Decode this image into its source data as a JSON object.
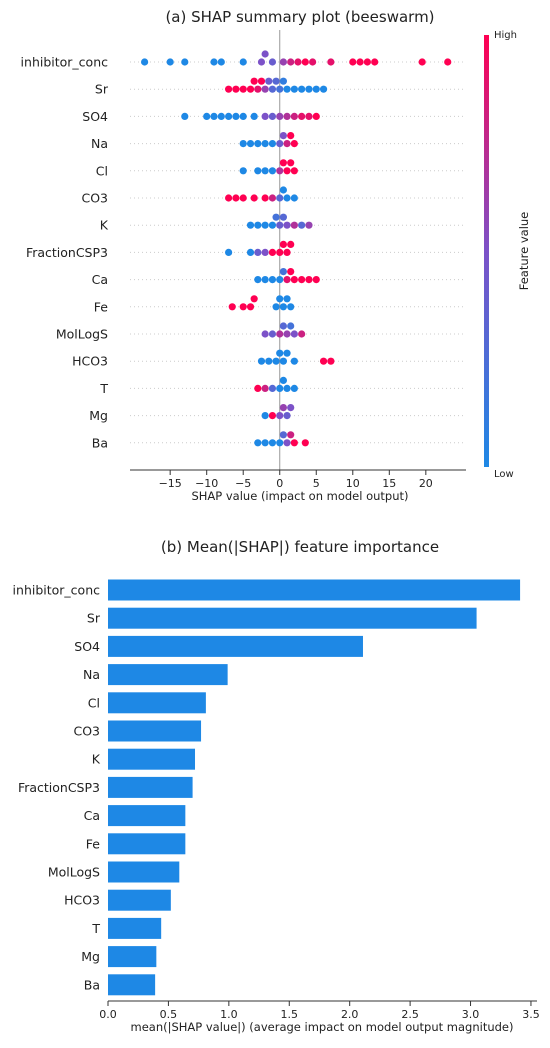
{
  "chart_data": [
    {
      "type": "scatter",
      "title": "(a) SHAP summary plot (beeswarm)",
      "xlabel": "SHAP value (impact on model output)",
      "xticks": [
        -15,
        -10,
        -5,
        0,
        5,
        10,
        15,
        20
      ],
      "xlim": [
        -20.5,
        25.5
      ],
      "features": [
        "inhibitor_conc",
        "Sr",
        "SO4",
        "Na",
        "Cl",
        "CO3",
        "K",
        "FractionCSP3",
        "Ca",
        "Fe",
        "MolLogS",
        "HCO3",
        "T",
        "Mg",
        "Ba"
      ],
      "colorbar": {
        "label": "Feature value",
        "high": "High",
        "low": "Low",
        "low_color": "#1e88e5",
        "high_color": "#ff0052"
      },
      "points": [
        {
          "feature": "inhibitor_conc",
          "values": [
            -18.5,
            -15,
            -13,
            -9,
            -8,
            -5,
            -2.5,
            -2,
            -1,
            0.5,
            1.5,
            2.5,
            3.5,
            4.5,
            7,
            10,
            11,
            12,
            13,
            19.5,
            23
          ],
          "colors": [
            0,
            0,
            0,
            0,
            0,
            0,
            0.5,
            0.5,
            0.4,
            0.6,
            0.8,
            0.9,
            1,
            0.9,
            0.9,
            1,
            1,
            1,
            1,
            1,
            1
          ]
        },
        {
          "feature": "Sr",
          "values": [
            -7,
            -6,
            -5,
            -4,
            -3.5,
            -3,
            -2.5,
            -2,
            -1.5,
            -1,
            -0.5,
            0,
            0.5,
            1,
            2,
            3,
            4,
            5,
            6
          ],
          "colors": [
            1,
            1,
            1,
            1,
            1,
            0.9,
            1,
            0.6,
            0.4,
            0.3,
            0.3,
            0.2,
            0.1,
            0,
            0,
            0,
            0,
            0,
            0
          ]
        },
        {
          "feature": "SO4",
          "values": [
            -13,
            -10,
            -9,
            -8,
            -7,
            -6,
            -5,
            -3.5,
            -2,
            -1,
            0,
            1,
            2,
            3,
            4,
            5
          ],
          "colors": [
            0,
            0,
            0,
            0,
            0,
            0,
            0,
            0,
            0.5,
            0.4,
            0.6,
            0.7,
            0.8,
            0.9,
            0.9,
            1
          ]
        },
        {
          "feature": "Na",
          "values": [
            -5,
            -4,
            -3,
            -2,
            -1,
            0,
            0.5,
            1,
            1.5,
            2
          ],
          "colors": [
            0,
            0,
            0,
            0,
            0,
            0.4,
            0.5,
            0.8,
            1,
            1
          ]
        },
        {
          "feature": "Cl",
          "values": [
            -5,
            -3,
            -2,
            -1,
            0,
            0.5,
            1,
            1.5,
            2
          ],
          "colors": [
            0,
            0,
            0,
            0,
            0.7,
            1,
            1,
            1,
            1
          ]
        },
        {
          "feature": "CO3",
          "values": [
            -7,
            -6,
            -5,
            -3.5,
            -2,
            -1,
            0,
            0.5,
            1,
            2
          ],
          "colors": [
            1,
            1,
            1,
            1,
            1,
            0.8,
            0.3,
            0,
            0,
            0
          ]
        },
        {
          "feature": "K",
          "values": [
            -4,
            -3,
            -2,
            -1,
            -0.5,
            0,
            0.5,
            1,
            2,
            3,
            4
          ],
          "colors": [
            0,
            0,
            0,
            0,
            0.2,
            0.4,
            0.3,
            0.5,
            0.7,
            0.3,
            0.6
          ]
        },
        {
          "feature": "FractionCSP3",
          "values": [
            -7,
            -4,
            -3,
            -2,
            -1,
            0,
            0.5,
            1,
            1.5
          ],
          "colors": [
            0,
            0,
            0.4,
            0.5,
            1,
            1,
            1,
            1,
            1
          ]
        },
        {
          "feature": "Ca",
          "values": [
            -3,
            -2,
            -1,
            0,
            0.5,
            1,
            1.5,
            2,
            3,
            4,
            5
          ],
          "colors": [
            0,
            0,
            0,
            0,
            0.2,
            0.9,
            1,
            1,
            1,
            1,
            1
          ]
        },
        {
          "feature": "Fe",
          "values": [
            -6.5,
            -5,
            -4,
            -3.5,
            -0.5,
            0,
            0.5,
            1,
            1.5
          ],
          "colors": [
            1,
            1,
            1,
            1,
            0,
            0,
            0,
            0,
            0
          ]
        },
        {
          "feature": "MolLogS",
          "values": [
            -2,
            -1,
            0,
            0.5,
            1,
            1.5,
            2,
            3
          ],
          "colors": [
            0.5,
            0.4,
            0.7,
            0.3,
            0.6,
            0.2,
            0.5,
            0.8
          ]
        },
        {
          "feature": "HCO3",
          "values": [
            -2.5,
            -1.5,
            -0.5,
            0,
            0.5,
            1,
            2,
            6,
            7
          ],
          "colors": [
            0,
            0,
            0,
            0,
            0,
            0,
            0,
            1,
            1
          ]
        },
        {
          "feature": "T",
          "values": [
            -3,
            -2,
            -1,
            0,
            0.5,
            1,
            2
          ],
          "colors": [
            1,
            0.8,
            0.3,
            0,
            0,
            0,
            0
          ]
        },
        {
          "feature": "Mg",
          "values": [
            -2,
            -1,
            0,
            0.5,
            1,
            1.5
          ],
          "colors": [
            0,
            1,
            0.5,
            0.6,
            0.4,
            0.5
          ]
        },
        {
          "feature": "Ba",
          "values": [
            -3,
            -2,
            -1,
            0,
            0.5,
            1,
            1.5,
            2,
            3.5
          ],
          "colors": [
            0,
            0,
            0,
            0,
            0.3,
            0.5,
            0.8,
            1,
            1
          ]
        }
      ]
    },
    {
      "type": "bar",
      "orientation": "horizontal",
      "title": "(b) Mean(|SHAP|) feature importance",
      "xlabel": "mean(|SHAP value|) (average impact on model output magnitude)",
      "xticks": [
        0.0,
        0.5,
        1.0,
        1.5,
        2.0,
        2.5,
        3.0,
        3.5
      ],
      "tick_labels": [
        "0.0",
        "0.5",
        "1.0",
        "1.5",
        "2.0",
        "2.5",
        "3.0",
        "3.5"
      ],
      "xlim": [
        0,
        3.55
      ],
      "categories": [
        "inhibitor_conc",
        "Sr",
        "SO4",
        "Na",
        "Cl",
        "CO3",
        "K",
        "FractionCSP3",
        "Ca",
        "Fe",
        "MolLogS",
        "HCO3",
        "T",
        "Mg",
        "Ba"
      ],
      "values": [
        3.41,
        3.05,
        2.11,
        0.99,
        0.81,
        0.77,
        0.72,
        0.7,
        0.64,
        0.64,
        0.59,
        0.52,
        0.44,
        0.4,
        0.39
      ],
      "bar_color": "#1e88e5"
    }
  ]
}
